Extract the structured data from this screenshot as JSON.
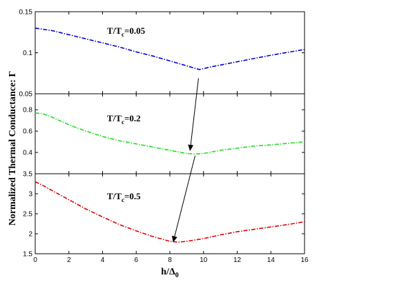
{
  "chart_data": {
    "type": "line",
    "ylabel": "Normalized Thermal Conductance: Γ",
    "xlabel": {
      "main": "h/Δ",
      "sub": "0"
    },
    "xlim": [
      0,
      16
    ],
    "xticks": [
      "0",
      "2",
      "4",
      "6",
      "8",
      "10",
      "12",
      "14",
      "16"
    ],
    "panels": [
      {
        "label": {
          "main": "T/T",
          "sub": "c",
          "tail": "=0.05"
        },
        "ylim": [
          0.05,
          0.15
        ],
        "yticks": [
          "0.05",
          "0.1",
          "0.15"
        ],
        "series": [
          {
            "color": "#0000cc",
            "x": [
              0,
              1,
              2,
              3,
              4,
              5,
              6,
              7,
              8,
              9,
              9.75,
              10.5,
              12,
              14,
              16
            ],
            "y": [
              0.13,
              0.127,
              0.122,
              0.117,
              0.112,
              0.107,
              0.101,
              0.096,
              0.09,
              0.084,
              0.0795,
              0.083,
              0.089,
              0.097,
              0.104
            ]
          }
        ]
      },
      {
        "label": {
          "main": "T/T",
          "sub": "c",
          "tail": "=0.2"
        },
        "ylim": [
          0.2,
          0.95
        ],
        "yticks": [
          "0.4",
          "0.6",
          "0.8"
        ],
        "series": [
          {
            "color": "#22dd22",
            "x": [
              0,
              0.5,
              1,
              2,
              3,
              4,
              5,
              6,
              7,
              8,
              9,
              9.5,
              10,
              11,
              12,
              13,
              14,
              15,
              16
            ],
            "y": [
              0.77,
              0.76,
              0.73,
              0.66,
              0.6,
              0.55,
              0.51,
              0.48,
              0.45,
              0.42,
              0.39,
              0.385,
              0.39,
              0.42,
              0.44,
              0.46,
              0.47,
              0.485,
              0.5
            ]
          }
        ]
      },
      {
        "label": {
          "main": "T/T",
          "sub": "c",
          "tail": "=0.5"
        },
        "ylim": [
          1.5,
          3.5
        ],
        "yticks": [
          "1.5",
          "2",
          "2.5",
          "3",
          "3.5"
        ],
        "series": [
          {
            "color": "#dd0000",
            "x": [
              0,
              0.5,
              1,
              2,
              3,
              4,
              5,
              6,
              7,
              8,
              8.5,
              9,
              10,
              11,
              12,
              13,
              14,
              15,
              16
            ],
            "y": [
              3.3,
              3.2,
              3.08,
              2.85,
              2.62,
              2.42,
              2.23,
              2.07,
              1.93,
              1.81,
              1.79,
              1.81,
              1.88,
              1.97,
              2.05,
              2.11,
              2.17,
              2.23,
              2.3
            ]
          }
        ]
      }
    ],
    "arrows": [
      {
        "from_panel": 0,
        "from": [
          9.7,
          0.069
        ],
        "to_panel": 1,
        "to": [
          9.2,
          0.42
        ]
      },
      {
        "from_panel": 1,
        "from": [
          9.5,
          0.37
        ],
        "to_panel": 2,
        "to": [
          8.2,
          1.8
        ]
      }
    ]
  }
}
